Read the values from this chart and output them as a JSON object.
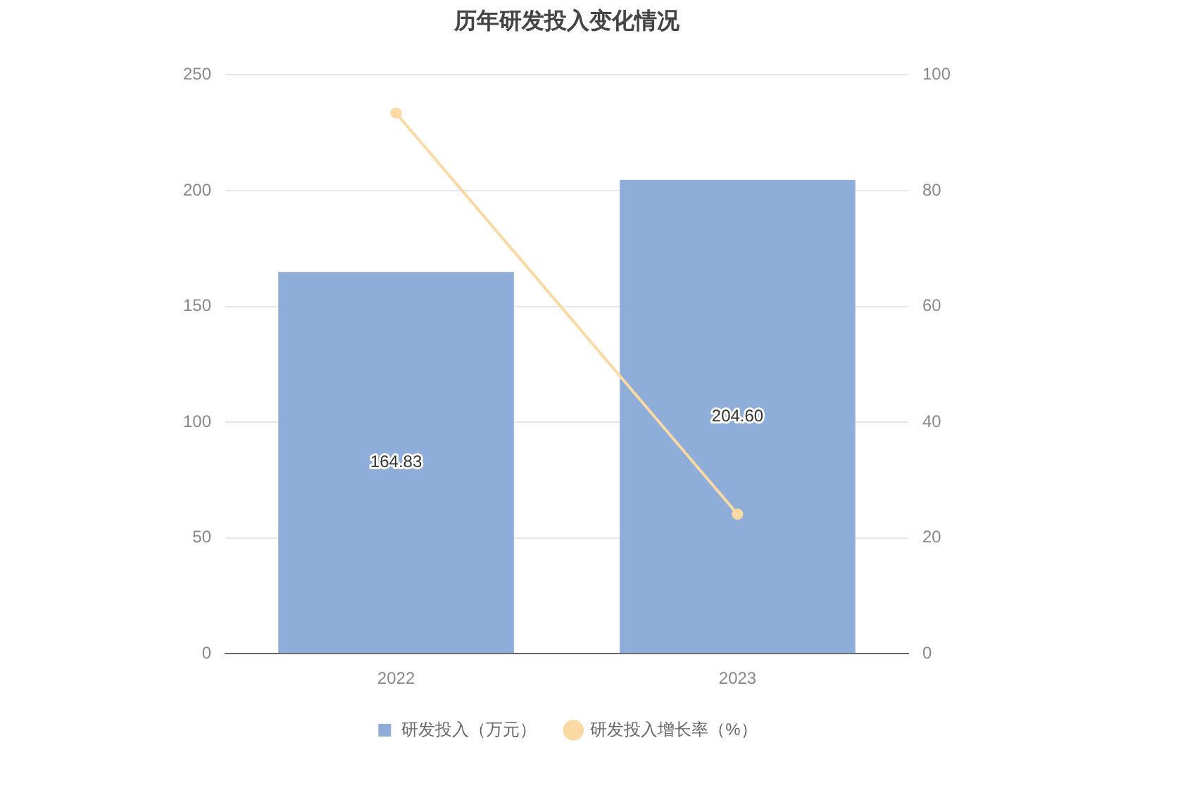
{
  "chart_data": {
    "type": "bar",
    "title": "历年研发投入变化情况",
    "categories": [
      "2022",
      "2023"
    ],
    "series": [
      {
        "name": "研发投入（万元）",
        "color": "#8eadd9",
        "values": [
          164.83,
          204.6
        ],
        "value_labels": [
          "164.83",
          "204.60"
        ]
      },
      {
        "name": "研发投入增长率（%）",
        "type": "line",
        "axis": "y2",
        "color": "#fbd9a3",
        "values": [
          93.4,
          24.1
        ]
      }
    ],
    "ylim": [
      0,
      250
    ],
    "yticks": [
      0,
      50,
      100,
      150,
      200,
      250
    ],
    "y2lim": [
      0,
      100
    ],
    "y2ticks": [
      0,
      20,
      40,
      60,
      80,
      100
    ],
    "grid": "y",
    "legend": "bottom",
    "marker": "circle"
  }
}
